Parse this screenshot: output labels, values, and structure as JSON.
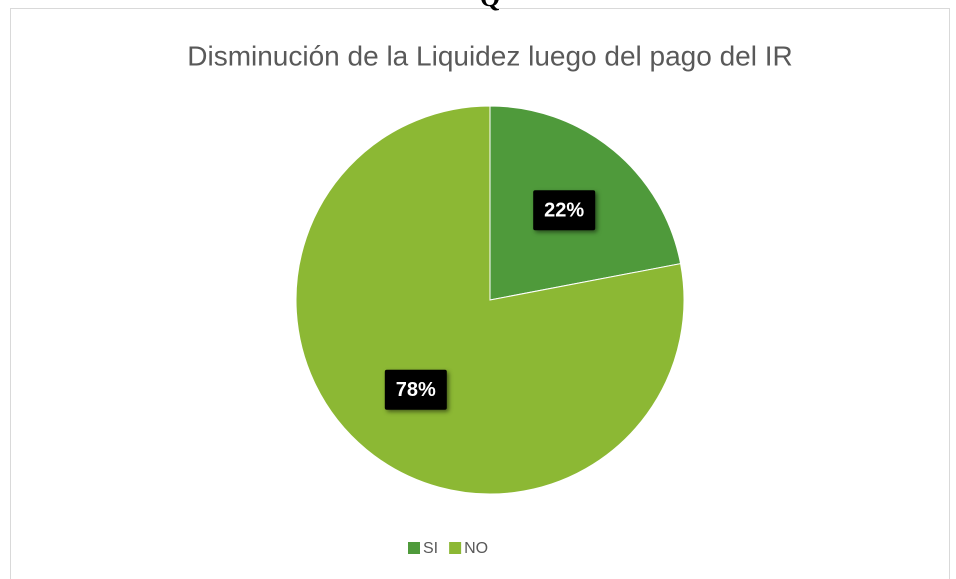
{
  "header_fragment": "Q",
  "chart_data": {
    "type": "pie",
    "title": "Disminución de la Liquidez luego del pago del IR",
    "categories": [
      "SI",
      "NO"
    ],
    "values": [
      22,
      78
    ],
    "value_labels": [
      "22%",
      "78%"
    ],
    "colors": [
      "#4f9a3b",
      "#8cb834"
    ],
    "legend": "bottom"
  }
}
